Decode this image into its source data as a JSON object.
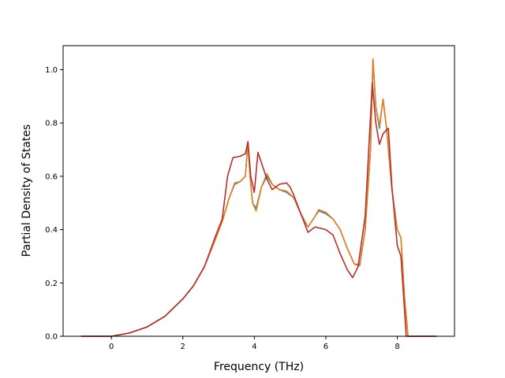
{
  "chart_data": {
    "type": "line",
    "title": "",
    "xlabel": "Frequency (THz)",
    "ylabel": "Partial Density of States",
    "xlim": [
      -1.35,
      9.6
    ],
    "ylim": [
      0.0,
      1.09
    ],
    "xticks": [
      0,
      2,
      4,
      6,
      8
    ],
    "yticks": [
      0.0,
      0.2,
      0.4,
      0.6,
      0.8,
      1.0
    ],
    "grid": false,
    "legend": "none",
    "series": [
      {
        "color": "#3b7bbf",
        "points": [
          [
            -0.85,
            0
          ],
          [
            0,
            0
          ],
          [
            0.5,
            0.012
          ],
          [
            1,
            0.035
          ],
          [
            1.5,
            0.075
          ],
          [
            2,
            0.14
          ],
          [
            2.3,
            0.19
          ],
          [
            2.6,
            0.26
          ],
          [
            2.9,
            0.36
          ],
          [
            3.1,
            0.43
          ],
          [
            3.3,
            0.52
          ],
          [
            3.45,
            0.57
          ],
          [
            3.6,
            0.58
          ],
          [
            3.75,
            0.6
          ],
          [
            3.82,
            0.73
          ],
          [
            3.88,
            0.6
          ],
          [
            3.95,
            0.5
          ],
          [
            4.05,
            0.48
          ],
          [
            4.2,
            0.56
          ],
          [
            4.35,
            0.6
          ],
          [
            4.5,
            0.57
          ],
          [
            4.7,
            0.55
          ],
          [
            4.9,
            0.54
          ],
          [
            5.1,
            0.52
          ],
          [
            5.3,
            0.46
          ],
          [
            5.5,
            0.41
          ],
          [
            5.7,
            0.45
          ],
          [
            5.8,
            0.47
          ],
          [
            6.0,
            0.46
          ],
          [
            6.2,
            0.44
          ],
          [
            6.4,
            0.4
          ],
          [
            6.6,
            0.33
          ],
          [
            6.8,
            0.27
          ],
          [
            6.95,
            0.27
          ],
          [
            7.1,
            0.4
          ],
          [
            7.25,
            0.7
          ],
          [
            7.32,
            1.04
          ],
          [
            7.4,
            0.86
          ],
          [
            7.5,
            0.78
          ],
          [
            7.6,
            0.89
          ],
          [
            7.7,
            0.78
          ],
          [
            7.85,
            0.55
          ],
          [
            8.0,
            0.4
          ],
          [
            8.1,
            0.37
          ],
          [
            8.2,
            0.15
          ],
          [
            8.3,
            0.0
          ],
          [
            9.1,
            0.0
          ]
        ]
      },
      {
        "color": "#e8801a",
        "points": [
          [
            -0.85,
            0
          ],
          [
            0,
            0
          ],
          [
            0.5,
            0.012
          ],
          [
            1,
            0.035
          ],
          [
            1.5,
            0.075
          ],
          [
            2,
            0.14
          ],
          [
            2.3,
            0.19
          ],
          [
            2.6,
            0.26
          ],
          [
            2.9,
            0.36
          ],
          [
            3.1,
            0.43
          ],
          [
            3.3,
            0.52
          ],
          [
            3.45,
            0.575
          ],
          [
            3.6,
            0.58
          ],
          [
            3.75,
            0.6
          ],
          [
            3.82,
            0.73
          ],
          [
            3.88,
            0.6
          ],
          [
            3.95,
            0.5
          ],
          [
            4.05,
            0.47
          ],
          [
            4.2,
            0.56
          ],
          [
            4.35,
            0.61
          ],
          [
            4.5,
            0.57
          ],
          [
            4.7,
            0.55
          ],
          [
            4.9,
            0.545
          ],
          [
            5.1,
            0.52
          ],
          [
            5.3,
            0.46
          ],
          [
            5.5,
            0.41
          ],
          [
            5.7,
            0.45
          ],
          [
            5.8,
            0.475
          ],
          [
            6.0,
            0.465
          ],
          [
            6.2,
            0.44
          ],
          [
            6.4,
            0.4
          ],
          [
            6.6,
            0.33
          ],
          [
            6.8,
            0.27
          ],
          [
            6.95,
            0.265
          ],
          [
            7.1,
            0.4
          ],
          [
            7.25,
            0.7
          ],
          [
            7.32,
            1.04
          ],
          [
            7.4,
            0.86
          ],
          [
            7.5,
            0.79
          ],
          [
            7.6,
            0.89
          ],
          [
            7.7,
            0.78
          ],
          [
            7.85,
            0.55
          ],
          [
            8.0,
            0.4
          ],
          [
            8.1,
            0.37
          ],
          [
            8.2,
            0.15
          ],
          [
            8.3,
            0.0
          ],
          [
            9.1,
            0.0
          ]
        ]
      },
      {
        "color": "#b5302a",
        "points": [
          [
            -0.85,
            0
          ],
          [
            0,
            0
          ],
          [
            0.5,
            0.012
          ],
          [
            1,
            0.035
          ],
          [
            1.5,
            0.075
          ],
          [
            2,
            0.14
          ],
          [
            2.3,
            0.19
          ],
          [
            2.6,
            0.26
          ],
          [
            2.9,
            0.37
          ],
          [
            3.1,
            0.44
          ],
          [
            3.25,
            0.6
          ],
          [
            3.4,
            0.67
          ],
          [
            3.6,
            0.675
          ],
          [
            3.75,
            0.685
          ],
          [
            3.82,
            0.73
          ],
          [
            3.9,
            0.6
          ],
          [
            4.0,
            0.54
          ],
          [
            4.1,
            0.69
          ],
          [
            4.2,
            0.65
          ],
          [
            4.35,
            0.59
          ],
          [
            4.5,
            0.55
          ],
          [
            4.7,
            0.57
          ],
          [
            4.9,
            0.575
          ],
          [
            5.0,
            0.56
          ],
          [
            5.1,
            0.53
          ],
          [
            5.3,
            0.46
          ],
          [
            5.5,
            0.39
          ],
          [
            5.7,
            0.41
          ],
          [
            6.0,
            0.4
          ],
          [
            6.2,
            0.38
          ],
          [
            6.4,
            0.31
          ],
          [
            6.6,
            0.25
          ],
          [
            6.75,
            0.22
          ],
          [
            6.9,
            0.26
          ],
          [
            7.1,
            0.45
          ],
          [
            7.2,
            0.7
          ],
          [
            7.3,
            0.95
          ],
          [
            7.4,
            0.8
          ],
          [
            7.5,
            0.72
          ],
          [
            7.6,
            0.76
          ],
          [
            7.75,
            0.78
          ],
          [
            7.85,
            0.56
          ],
          [
            8.0,
            0.34
          ],
          [
            8.1,
            0.3
          ],
          [
            8.2,
            0.1
          ],
          [
            8.25,
            0.0
          ],
          [
            9.1,
            0.0
          ]
        ]
      }
    ]
  }
}
